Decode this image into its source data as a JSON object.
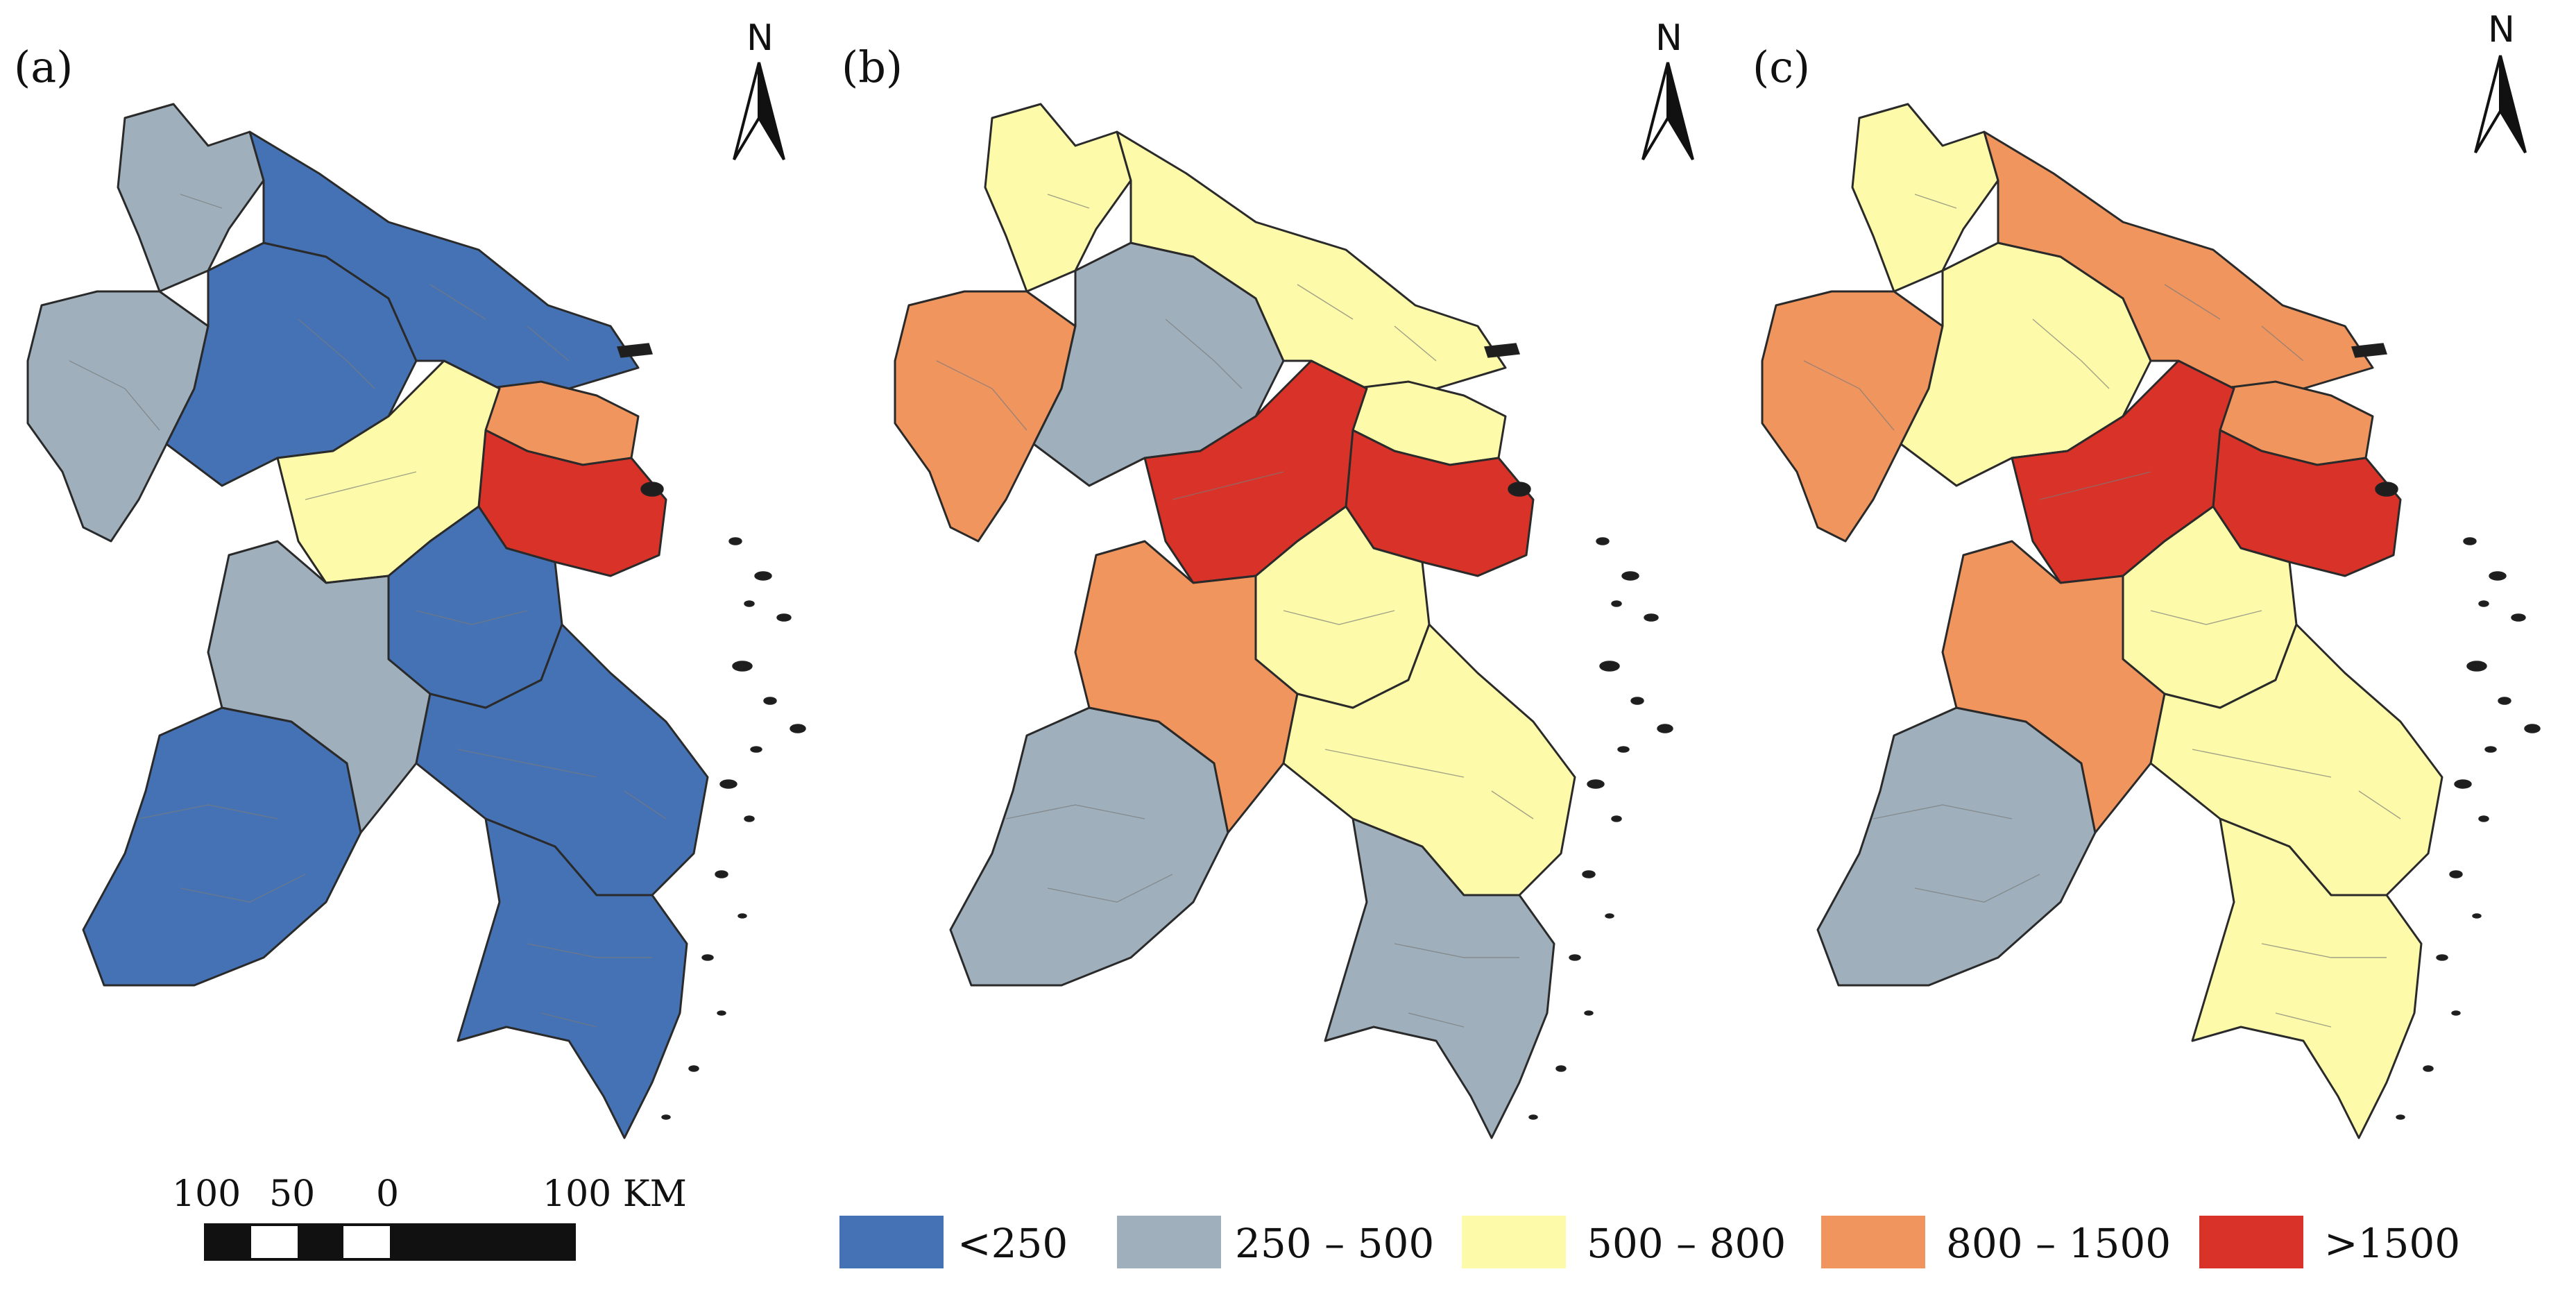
{
  "panels": [
    {
      "label": "(a)",
      "north": "N"
    },
    {
      "label": "(b)",
      "north": "N"
    },
    {
      "label": "(c)",
      "north": "N"
    }
  ],
  "scale_bar": {
    "labels": [
      "100",
      "50",
      "0",
      "100 KM"
    ]
  },
  "legend": [
    {
      "label": "<250",
      "color": "#4472b5"
    },
    {
      "label": "250 – 500",
      "color": "#9fb0bc"
    },
    {
      "label": "500 – 800",
      "color": "#fdfba9"
    },
    {
      "label": "800 – 1500",
      "color": "#f0955e"
    },
    {
      "label": ">1500",
      "color": "#d93228"
    }
  ],
  "regions": [
    "north-top",
    "north-west",
    "north-west-inner",
    "north-east",
    "shanghai-north",
    "shanghai",
    "central-lake",
    "central-south",
    "southwest-large",
    "south-central",
    "southeast-coast",
    "south-tail"
  ],
  "panel_classes": [
    [
      "250-500",
      "250-500",
      "<250",
      "<250",
      "800-1500",
      ">1500",
      "500-800",
      "<250",
      "<250",
      "250-500",
      "<250",
      "<250"
    ],
    [
      "500-800",
      "800-1500",
      "250-500",
      "500-800",
      "500-800",
      ">1500",
      ">1500",
      "500-800",
      "250-500",
      "800-1500",
      "500-800",
      "250-500"
    ],
    [
      "500-800",
      "800-1500",
      "500-800",
      "800-1500",
      "800-1500",
      ">1500",
      ">1500",
      "500-800",
      "250-500",
      "800-1500",
      "500-800",
      "500-800"
    ]
  ]
}
